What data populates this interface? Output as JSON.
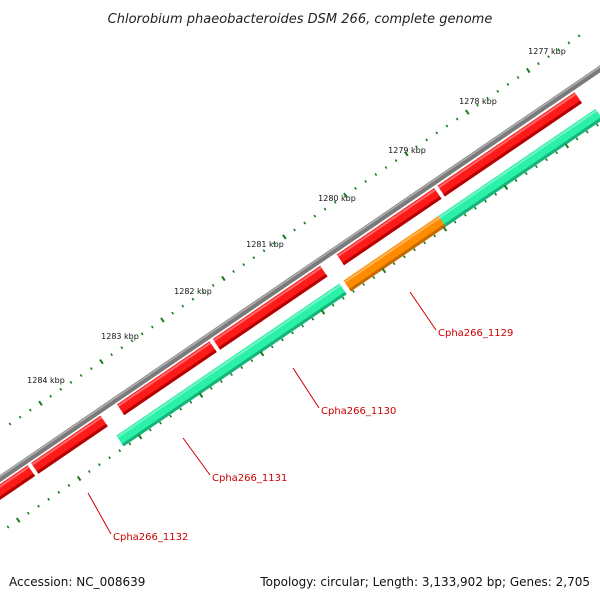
{
  "title": "Chlorobium phaeobacteroides DSM 266, complete genome",
  "footer": {
    "accession": "Accession: NC_008639",
    "stats": "Topology: circular; Length: 3,133,902 bp; Genes: 2,705"
  },
  "kbp_labels": [
    "1277 kbp",
    "1278 kbp",
    "1279 kbp",
    "1280 kbp",
    "1281 kbp",
    "1282 kbp",
    "1283 kbp",
    "1284 kbp"
  ],
  "gene_labels": [
    "Cpha266_1129",
    "Cpha266_1130",
    "Cpha266_1131",
    "Cpha266_1132"
  ],
  "colors": {
    "backbone": "#7a7a7a",
    "cds": "#ff1a1a",
    "gene": "#2af0a8",
    "gene_highlight": "#ff8c00",
    "tick": "#1a7a1a",
    "label": "#cc0000"
  }
}
